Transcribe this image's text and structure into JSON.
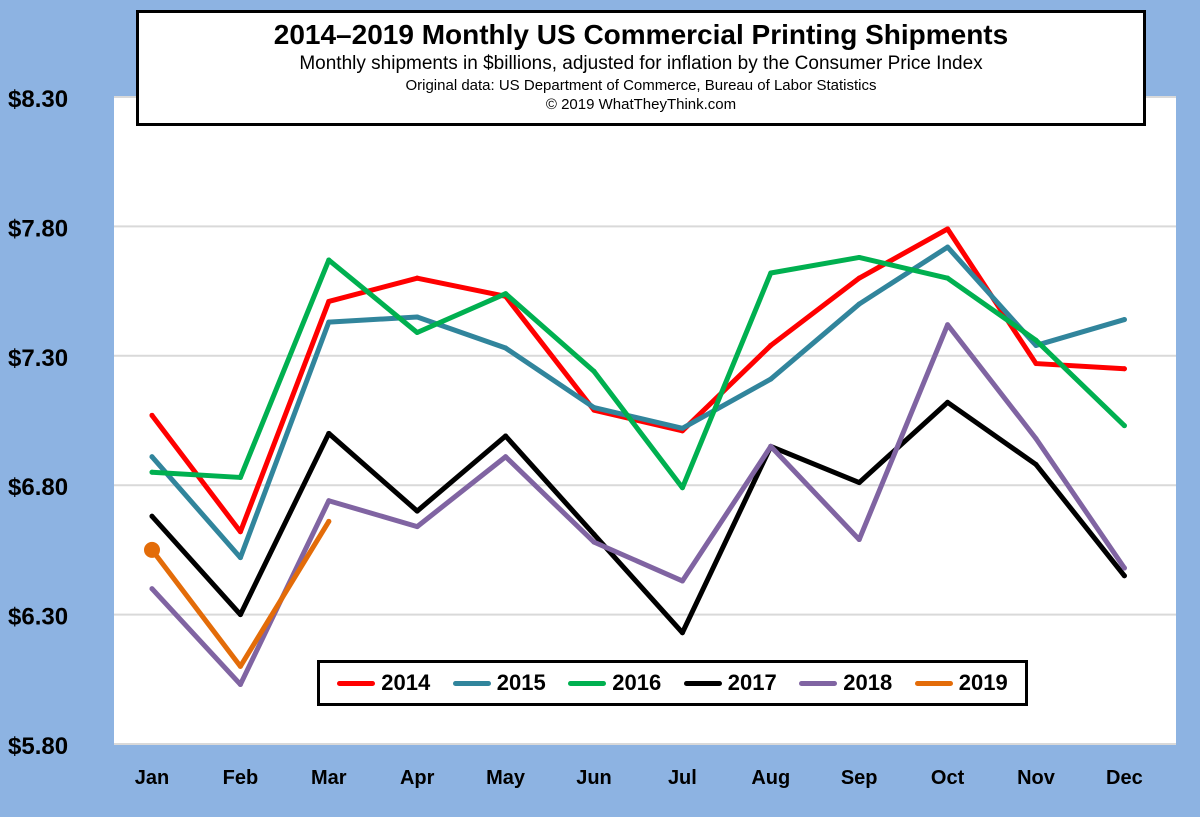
{
  "chart_data": {
    "type": "line",
    "title": "2014–2019 Monthly US Commercial Printing Shipments",
    "subtitle": "Monthly shipments in $billions, adjusted for inflation by the Consumer Price Index",
    "source": "Original data: US Department of Commerce, Bureau of Labor Statistics",
    "copyright": "© 2019 WhatTheyThink.com",
    "categories": [
      "Jan",
      "Feb",
      "Mar",
      "Apr",
      "May",
      "Jun",
      "Jul",
      "Aug",
      "Sep",
      "Oct",
      "Nov",
      "Dec"
    ],
    "ylim": [
      5.8,
      8.3
    ],
    "yticks": [
      5.8,
      6.3,
      6.8,
      7.3,
      7.8,
      8.3
    ],
    "ytick_labels": [
      "$5.80",
      "$6.30",
      "$6.80",
      "$7.30",
      "$7.80",
      "$8.30"
    ],
    "grid": true,
    "legend_position": "bottom-center",
    "series": [
      {
        "name": "2014",
        "color": "#ff0000",
        "values": [
          7.07,
          6.62,
          7.51,
          7.6,
          7.53,
          7.09,
          7.01,
          7.34,
          7.6,
          7.79,
          7.27,
          7.25
        ]
      },
      {
        "name": "2015",
        "color": "#31859c",
        "values": [
          6.91,
          6.52,
          7.43,
          7.45,
          7.33,
          7.1,
          7.02,
          7.21,
          7.5,
          7.72,
          7.34,
          7.44
        ]
      },
      {
        "name": "2016",
        "color": "#00b050",
        "values": [
          6.85,
          6.83,
          7.67,
          7.39,
          7.54,
          7.24,
          6.79,
          7.62,
          7.68,
          7.6,
          7.36,
          7.03
        ]
      },
      {
        "name": "2017",
        "color": "#000000",
        "values": [
          6.68,
          6.3,
          7.0,
          6.7,
          6.99,
          6.61,
          6.23,
          6.95,
          6.81,
          7.12,
          6.88,
          6.45
        ]
      },
      {
        "name": "2018",
        "color": "#8064a2",
        "values": [
          6.4,
          6.03,
          6.74,
          6.64,
          6.91,
          6.58,
          6.43,
          6.95,
          6.59,
          7.42,
          6.98,
          6.48
        ]
      },
      {
        "name": "2019",
        "color": "#e36c09",
        "values": [
          6.55,
          6.1,
          6.66,
          null,
          null,
          null,
          null,
          null,
          null,
          null,
          null,
          null
        ]
      }
    ]
  }
}
